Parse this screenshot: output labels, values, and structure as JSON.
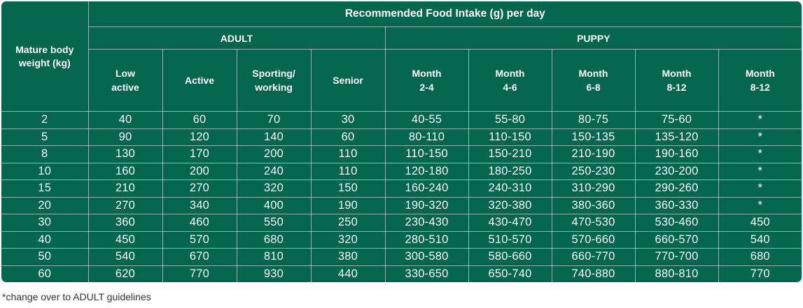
{
  "table": {
    "title": "Recommended Food Intake (g) per day",
    "corner_header": "Mature body weight (kg)",
    "group_adult": "ADULT",
    "group_puppy": "PUPPY",
    "sub_headers": [
      {
        "line1": "Low",
        "line2": "active"
      },
      {
        "line1": "Active",
        "line2": ""
      },
      {
        "line1": "Sporting/",
        "line2": "working"
      },
      {
        "line1": "Senior",
        "line2": ""
      },
      {
        "line1": "Month",
        "line2": "2-4"
      },
      {
        "line1": "Month",
        "line2": "4-6"
      },
      {
        "line1": "Month",
        "line2": "6-8"
      },
      {
        "line1": "Month",
        "line2": "8-12"
      },
      {
        "line1": "Month",
        "line2": "8-12"
      }
    ],
    "rows": [
      [
        "2",
        "40",
        "60",
        "70",
        "30",
        "40-55",
        "55-80",
        "80-75",
        "75-60",
        "*"
      ],
      [
        "5",
        "90",
        "120",
        "140",
        "60",
        "80-110",
        "110-150",
        "150-135",
        "135-120",
        "*"
      ],
      [
        "8",
        "130",
        "170",
        "200",
        "110",
        "110-150",
        "150-210",
        "210-190",
        "190-160",
        "*"
      ],
      [
        "10",
        "160",
        "200",
        "240",
        "110",
        "120-180",
        "180-250",
        "250-230",
        "230-200",
        "*"
      ],
      [
        "15",
        "210",
        "270",
        "320",
        "150",
        "160-240",
        "240-310",
        "310-290",
        "290-260",
        "*"
      ],
      [
        "20",
        "270",
        "340",
        "400",
        "190",
        "190-320",
        "320-380",
        "380-360",
        "360-330",
        "*"
      ],
      [
        "30",
        "360",
        "460",
        "550",
        "250",
        "230-430",
        "430-470",
        "470-530",
        "530-460",
        "450"
      ],
      [
        "40",
        "450",
        "570",
        "680",
        "320",
        "280-510",
        "510-570",
        "570-660",
        "660-570",
        "540"
      ],
      [
        "50",
        "540",
        "670",
        "810",
        "380",
        "300-580",
        "580-660",
        "660-770",
        "770-700",
        "680"
      ],
      [
        "60",
        "620",
        "770",
        "930",
        "440",
        "330-650",
        "650-740",
        "740-880",
        "880-810",
        "770"
      ]
    ]
  },
  "footnote": "*change over to ADULT guidelines",
  "colors": {
    "panel_background": "#03664d",
    "text": "#ffffff",
    "footnote_text": "#333333"
  }
}
